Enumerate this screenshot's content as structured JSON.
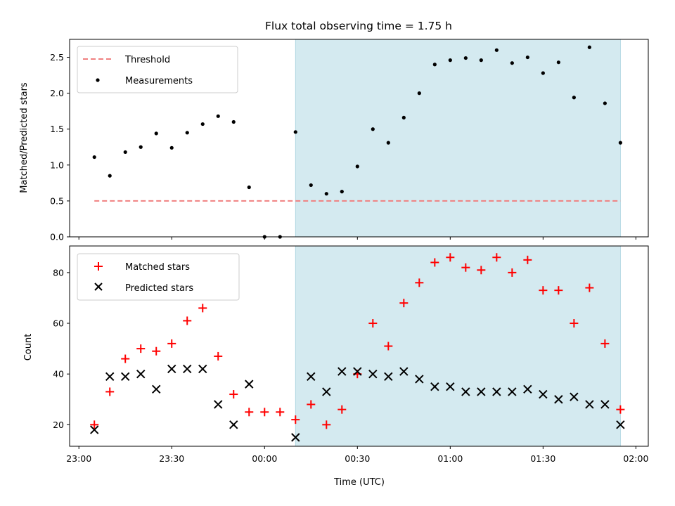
{
  "title": "Flux total observing time = 1.75 h",
  "chart_data": [
    {
      "type": "scatter",
      "panel": "top",
      "ylabel": "Matched/Predicted stars",
      "ylim": [
        0,
        2.75
      ],
      "yticks": [
        0.0,
        0.5,
        1.0,
        1.5,
        2.0,
        2.5
      ],
      "ytick_labels": [
        "0.0",
        "0.5",
        "1.0",
        "1.5",
        "2.0",
        "2.5"
      ],
      "shaded_interval": [
        "00:10",
        "01:55"
      ],
      "shade_color": "#d4eaf0",
      "threshold": {
        "name": "Threshold",
        "value": 0.5,
        "x_range": [
          "23:05",
          "01:55"
        ],
        "color": "#f08080"
      },
      "series": [
        {
          "name": "Measurements",
          "color": "#000000",
          "marker": "dot",
          "x": [
            "23:05",
            "23:10",
            "23:15",
            "23:20",
            "23:25",
            "23:30",
            "23:35",
            "23:40",
            "23:45",
            "23:50",
            "23:55",
            "00:00",
            "00:05",
            "00:10",
            "00:15",
            "00:20",
            "00:25",
            "00:30",
            "00:35",
            "00:40",
            "00:45",
            "00:50",
            "00:55",
            "01:00",
            "01:05",
            "01:10",
            "01:15",
            "01:20",
            "01:25",
            "01:30",
            "01:35",
            "01:40",
            "01:45",
            "01:50",
            "01:55"
          ],
          "y": [
            1.11,
            0.85,
            1.18,
            1.25,
            1.44,
            1.24,
            1.45,
            1.57,
            1.68,
            1.6,
            0.69,
            0.0,
            0.0,
            1.46,
            0.72,
            0.6,
            0.63,
            0.98,
            1.5,
            1.31,
            1.66,
            2.0,
            2.4,
            2.46,
            2.49,
            2.46,
            2.6,
            2.42,
            2.5,
            2.28,
            2.43,
            1.94,
            2.64,
            1.86,
            1.31
          ]
        }
      ],
      "legend": {
        "placement": "upper-left",
        "entries": [
          "Threshold",
          "Measurements"
        ]
      }
    },
    {
      "type": "scatter",
      "panel": "bottom",
      "ylabel": "Count",
      "xlabel": "Time (UTC)",
      "ylim": [
        11.5,
        90.5
      ],
      "yticks": [
        20,
        40,
        60,
        80
      ],
      "ytick_labels": [
        "20",
        "40",
        "60",
        "80"
      ],
      "xlim": [
        "22:57",
        "02:04"
      ],
      "xticks": [
        "23:00",
        "23:30",
        "00:00",
        "00:30",
        "01:00",
        "01:30",
        "02:00"
      ],
      "shaded_interval": [
        "00:10",
        "01:55"
      ],
      "shade_color": "#d4eaf0",
      "x": [
        "23:05",
        "23:10",
        "23:15",
        "23:20",
        "23:25",
        "23:30",
        "23:35",
        "23:40",
        "23:45",
        "23:50",
        "23:55",
        "00:00",
        "00:05",
        "00:10",
        "00:15",
        "00:20",
        "00:25",
        "00:30",
        "00:35",
        "00:40",
        "00:45",
        "00:50",
        "00:55",
        "01:00",
        "01:05",
        "01:10",
        "01:15",
        "01:20",
        "01:25",
        "01:30",
        "01:35",
        "01:40",
        "01:45",
        "01:50",
        "01:55"
      ],
      "series": [
        {
          "name": "Matched stars",
          "color": "#ff0000",
          "marker": "plus",
          "values": [
            20,
            33,
            46,
            50,
            49,
            52,
            61,
            66,
            47,
            32,
            25,
            25,
            25,
            22,
            28,
            20,
            26,
            40,
            60,
            51,
            68,
            76,
            84,
            86,
            82,
            81,
            86,
            80,
            85,
            73,
            73,
            60,
            74,
            52,
            26
          ]
        },
        {
          "name": "Predicted stars",
          "color": "#000000",
          "marker": "x",
          "values": [
            18,
            39,
            39,
            40,
            34,
            42,
            42,
            42,
            28,
            20,
            36,
            null,
            null,
            15,
            39,
            33,
            41,
            41,
            40,
            39,
            41,
            38,
            35,
            35,
            33,
            33,
            33,
            33,
            34,
            32,
            30,
            31,
            28,
            28,
            20
          ]
        }
      ],
      "legend": {
        "placement": "upper-left",
        "entries": [
          "Matched stars",
          "Predicted stars"
        ]
      }
    }
  ]
}
